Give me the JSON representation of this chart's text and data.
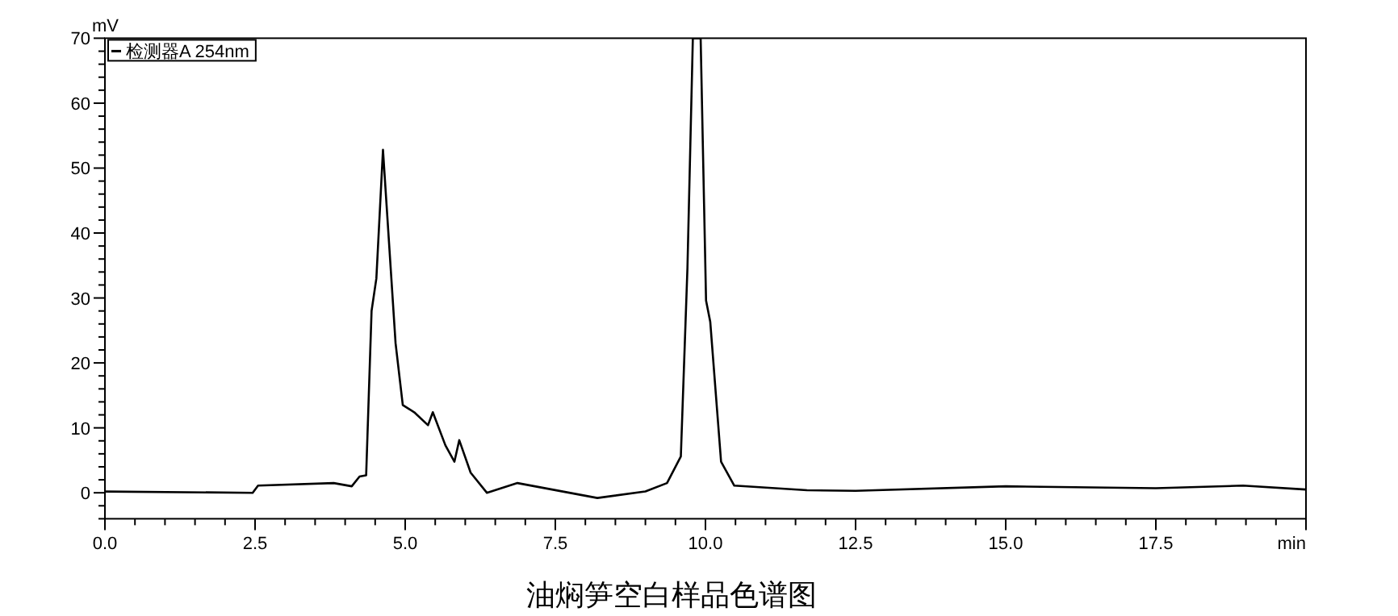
{
  "chart_data": {
    "type": "line",
    "title": "油焖笋空白样品色谱图",
    "xlabel": "min",
    "ylabel": "mV",
    "legend": "top left",
    "marker": "none",
    "line_style": "solid",
    "x": [
      0,
      2.46,
      2.55,
      3.81,
      4.11,
      4.24,
      4.35,
      4.44,
      4.52,
      4.63,
      4.84,
      4.96,
      5.15,
      5.38,
      5.46,
      5.67,
      5.82,
      5.9,
      6.09,
      6.36,
      6.87,
      8.2,
      9.0,
      9.36,
      9.59,
      9.7,
      9.79,
      9.92,
      10.01,
      10.08,
      10.26,
      10.48,
      11.69,
      12.5,
      15.0,
      17.5,
      18.95,
      20.0
    ],
    "series": [
      {
        "name": "检测器A 254nm",
        "color": "#000000",
        "values": [
          0.2,
          0,
          1.1,
          1.5,
          1.0,
          2.5,
          2.7,
          28,
          33,
          52.8,
          23,
          13.5,
          12.4,
          10.4,
          12.4,
          7.3,
          4.8,
          8.1,
          3.1,
          0,
          1.5,
          -0.8,
          0.2,
          1.5,
          5.6,
          34.6,
          70,
          70,
          29.6,
          26.3,
          4.8,
          1.1,
          0.4,
          0.3,
          1.0,
          0.7,
          1.1,
          0.5
        ]
      }
    ],
    "xlim": [
      0,
      20
    ],
    "ylim": [
      -4,
      70
    ],
    "xticks": [
      {
        "value": 0,
        "label": "0.0"
      },
      2.5,
      {
        "value": 5,
        "label": "5.0"
      },
      7.5,
      {
        "value": 10,
        "label": "10.0"
      },
      12.5,
      {
        "value": 15,
        "label": "15.0"
      },
      17.5,
      {
        "value": 20,
        "label": null
      }
    ],
    "yticks": [
      0,
      10,
      20,
      30,
      40,
      50,
      60,
      70
    ]
  }
}
